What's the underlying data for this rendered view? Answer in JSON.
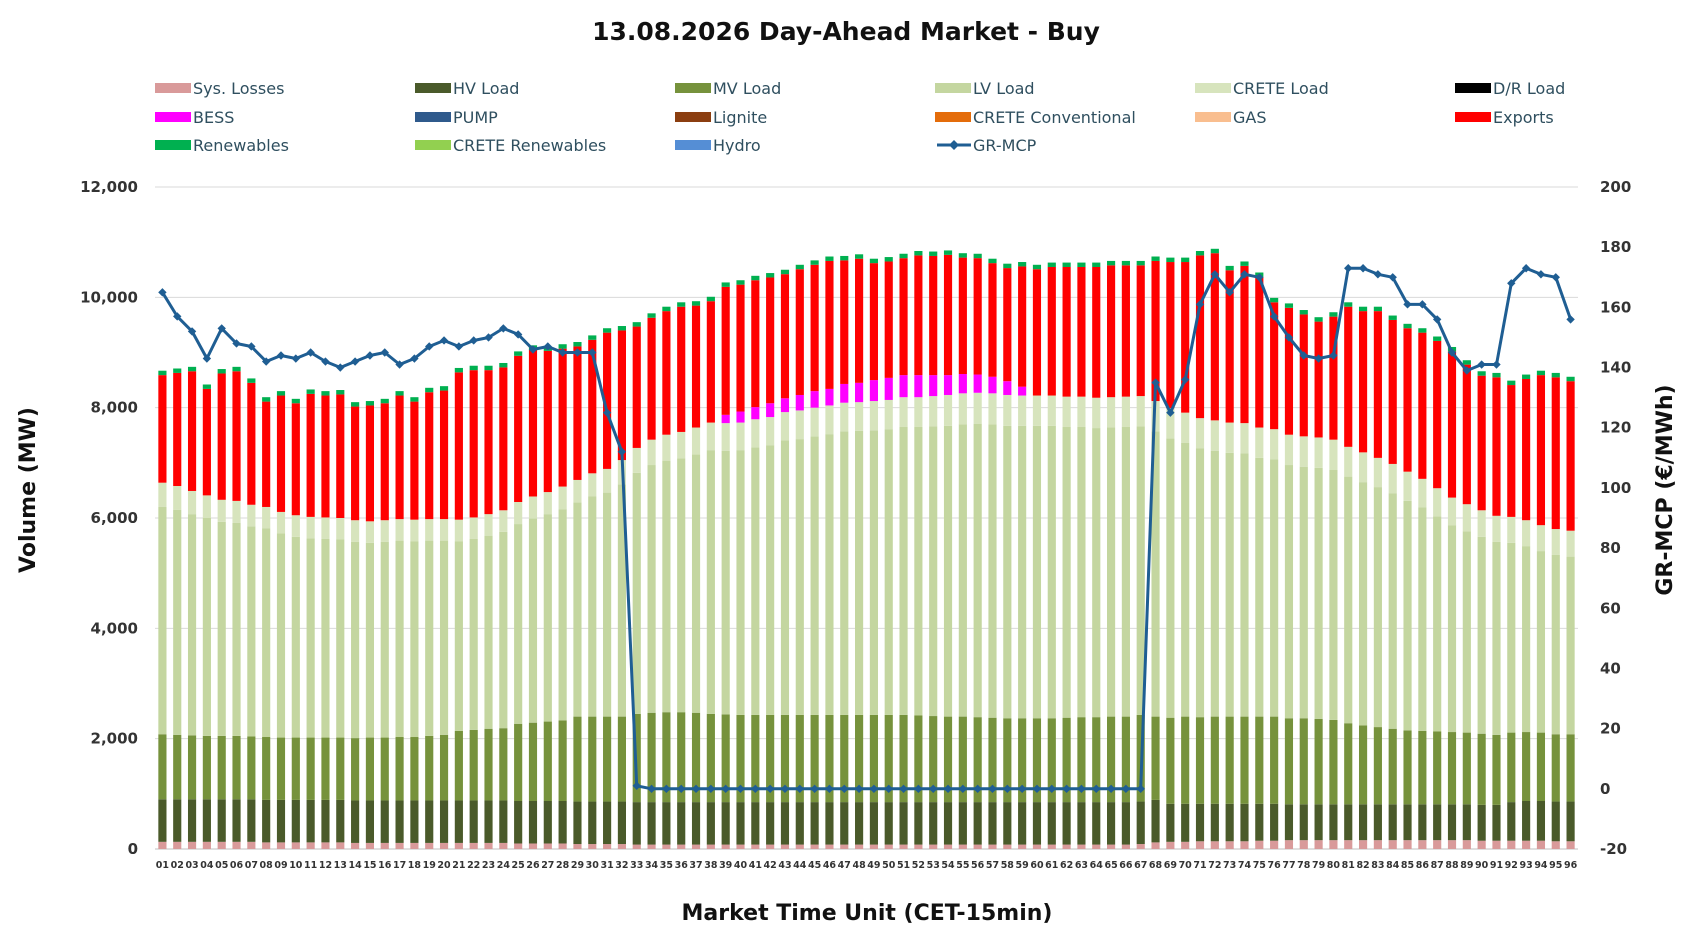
{
  "chart_data": {
    "type": "bar",
    "stacked": true,
    "title": "13.08.2026  Day-Ahead Market - Buy",
    "xlabel": "Market Time Unit (CET-15min)",
    "ylabel": "Volume (MW)",
    "y2label": "GR-MCP (€/MWh)",
    "ylim": [
      0,
      12000
    ],
    "y2lim": [
      -20,
      200
    ],
    "yticks": [
      "0",
      "2,000",
      "4,000",
      "6,000",
      "8,000",
      "10,000",
      "12,000"
    ],
    "y2ticks": [
      "-20",
      "0",
      "20",
      "40",
      "60",
      "80",
      "100",
      "120",
      "140",
      "160",
      "180",
      "200"
    ],
    "grid": true,
    "legend_position": "top",
    "categories": [
      "01",
      "02",
      "03",
      "04",
      "05",
      "06",
      "07",
      "08",
      "09",
      "10",
      "11",
      "12",
      "13",
      "14",
      "15",
      "16",
      "17",
      "18",
      "19",
      "20",
      "21",
      "22",
      "23",
      "24",
      "25",
      "26",
      "27",
      "28",
      "29",
      "30",
      "31",
      "32",
      "33",
      "34",
      "35",
      "36",
      "37",
      "38",
      "39",
      "40",
      "41",
      "42",
      "43",
      "44",
      "45",
      "46",
      "47",
      "48",
      "49",
      "50",
      "51",
      "52",
      "53",
      "54",
      "55",
      "56",
      "57",
      "58",
      "59",
      "60",
      "61",
      "62",
      "63",
      "64",
      "65",
      "66",
      "67",
      "68",
      "69",
      "70",
      "71",
      "72",
      "73",
      "74",
      "75",
      "76",
      "77",
      "78",
      "79",
      "80",
      "81",
      "82",
      "83",
      "84",
      "85",
      "86",
      "87",
      "88",
      "89",
      "90",
      "91",
      "92",
      "93",
      "94",
      "95",
      "96"
    ],
    "legend": [
      {
        "name": "Sys. Losses",
        "color": "#d99a9a",
        "marker": "box"
      },
      {
        "name": "HV Load",
        "color": "#4a5a2a",
        "marker": "box"
      },
      {
        "name": "MV Load",
        "color": "#76923c",
        "marker": "box"
      },
      {
        "name": "LV Load",
        "color": "#c4d6a0",
        "marker": "box"
      },
      {
        "name": "CRETE Load",
        "color": "#d7e4bd",
        "marker": "box"
      },
      {
        "name": "D/R Load",
        "color": "#000000",
        "marker": "box"
      },
      {
        "name": "BESS",
        "color": "#ff00ff",
        "marker": "box"
      },
      {
        "name": "PUMP",
        "color": "#2f5a8c",
        "marker": "box"
      },
      {
        "name": "Lignite",
        "color": "#8b3e10",
        "marker": "box"
      },
      {
        "name": "CRETE Conventional",
        "color": "#e46c0a",
        "marker": "box"
      },
      {
        "name": "GAS",
        "color": "#f9be8f",
        "marker": "box"
      },
      {
        "name": "Exports",
        "color": "#ff0000",
        "marker": "box"
      },
      {
        "name": "Renewables",
        "color": "#00b050",
        "marker": "box"
      },
      {
        "name": "CRETE Renewables",
        "color": "#92d050",
        "marker": "box"
      },
      {
        "name": "Hydro",
        "color": "#558ed5",
        "marker": "box"
      },
      {
        "name": "GR-MCP",
        "color": "#1f5e93",
        "marker": "line"
      }
    ],
    "series": [
      {
        "name": "Sys. Losses",
        "color": "#d99a9a",
        "values": [
          130,
          130,
          130,
          130,
          130,
          130,
          130,
          120,
          120,
          120,
          120,
          120,
          120,
          110,
          110,
          110,
          110,
          110,
          110,
          110,
          110,
          110,
          110,
          110,
          100,
          100,
          100,
          100,
          90,
          90,
          90,
          90,
          80,
          80,
          80,
          80,
          80,
          80,
          80,
          80,
          80,
          80,
          80,
          80,
          80,
          80,
          80,
          80,
          80,
          80,
          80,
          80,
          80,
          80,
          80,
          80,
          80,
          80,
          80,
          80,
          80,
          80,
          80,
          80,
          80,
          80,
          90,
          120,
          130,
          130,
          140,
          140,
          140,
          140,
          150,
          150,
          160,
          160,
          160,
          160,
          160,
          160,
          160,
          160,
          160,
          160,
          160,
          160,
          160,
          150,
          150,
          150,
          150,
          150,
          140,
          140
        ]
      },
      {
        "name": "HV Load",
        "color": "#4a5a2a",
        "values": [
          770,
          770,
          770,
          770,
          770,
          770,
          770,
          770,
          770,
          770,
          770,
          770,
          770,
          770,
          770,
          770,
          770,
          770,
          770,
          770,
          770,
          770,
          770,
          770,
          770,
          770,
          770,
          770,
          770,
          770,
          770,
          770,
          770,
          770,
          770,
          770,
          770,
          770,
          770,
          770,
          770,
          770,
          770,
          770,
          770,
          770,
          770,
          770,
          770,
          770,
          770,
          770,
          770,
          770,
          770,
          770,
          770,
          770,
          770,
          770,
          770,
          770,
          770,
          770,
          770,
          770,
          770,
          770,
          690,
          690,
          680,
          680,
          680,
          680,
          670,
          670,
          650,
          650,
          650,
          650,
          650,
          650,
          650,
          650,
          650,
          650,
          650,
          650,
          650,
          650,
          650,
          700,
          720,
          720,
          720,
          720
        ]
      },
      {
        "name": "MV Load",
        "color": "#76923c",
        "values": [
          1180,
          1170,
          1160,
          1150,
          1150,
          1150,
          1140,
          1140,
          1130,
          1130,
          1130,
          1130,
          1130,
          1130,
          1140,
          1140,
          1150,
          1150,
          1170,
          1190,
          1260,
          1280,
          1300,
          1310,
          1400,
          1420,
          1440,
          1460,
          1540,
          1540,
          1540,
          1540,
          1600,
          1620,
          1630,
          1630,
          1620,
          1600,
          1590,
          1580,
          1580,
          1580,
          1580,
          1580,
          1580,
          1580,
          1580,
          1580,
          1580,
          1580,
          1580,
          1570,
          1560,
          1550,
          1550,
          1540,
          1530,
          1520,
          1520,
          1520,
          1520,
          1530,
          1540,
          1540,
          1550,
          1550,
          1570,
          1510,
          1560,
          1580,
          1570,
          1580,
          1580,
          1580,
          1580,
          1580,
          1560,
          1560,
          1550,
          1530,
          1470,
          1430,
          1400,
          1370,
          1340,
          1330,
          1320,
          1310,
          1300,
          1290,
          1270,
          1260,
          1250,
          1240,
          1220,
          1220
        ]
      },
      {
        "name": "LV Load",
        "color": "#c4d6a0",
        "values": [
          4120,
          4080,
          4010,
          3950,
          3880,
          3860,
          3810,
          3780,
          3700,
          3640,
          3610,
          3600,
          3590,
          3560,
          3530,
          3550,
          3560,
          3550,
          3540,
          3520,
          3440,
          3460,
          3500,
          3560,
          3620,
          3700,
          3760,
          3830,
          3880,
          3990,
          4060,
          4210,
          4370,
          4490,
          4560,
          4600,
          4680,
          4780,
          4780,
          4800,
          4850,
          4890,
          4980,
          5000,
          5050,
          5090,
          5140,
          5150,
          5160,
          5180,
          5220,
          5230,
          5250,
          5270,
          5300,
          5320,
          5320,
          5300,
          5300,
          5300,
          5300,
          5270,
          5260,
          5240,
          5240,
          5250,
          5230,
          5170,
          5060,
          4960,
          4870,
          4820,
          4780,
          4770,
          4690,
          4660,
          4590,
          4560,
          4550,
          4530,
          4470,
          4410,
          4350,
          4270,
          4160,
          4050,
          3900,
          3750,
          3650,
          3570,
          3500,
          3440,
          3370,
          3290,
          3250,
          3220
        ]
      },
      {
        "name": "CRETE Load",
        "color": "#d7e4bd",
        "values": [
          440,
          430,
          420,
          410,
          400,
          400,
          390,
          390,
          390,
          390,
          390,
          390,
          390,
          390,
          390,
          390,
          390,
          390,
          390,
          390,
          390,
          390,
          390,
          390,
          400,
          400,
          400,
          410,
          410,
          420,
          430,
          440,
          450,
          460,
          470,
          480,
          490,
          500,
          500,
          500,
          510,
          510,
          510,
          520,
          520,
          520,
          520,
          520,
          530,
          530,
          540,
          540,
          550,
          560,
          560,
          560,
          560,
          560,
          550,
          550,
          550,
          550,
          550,
          550,
          550,
          550,
          550,
          550,
          550,
          550,
          550,
          550,
          550,
          550,
          550,
          550,
          550,
          550,
          550,
          550,
          540,
          540,
          530,
          530,
          530,
          520,
          510,
          500,
          490,
          480,
          470,
          470,
          470,
          470,
          470,
          470
        ]
      },
      {
        "name": "BESS",
        "color": "#ff00ff",
        "values": [
          0,
          0,
          0,
          0,
          0,
          0,
          0,
          0,
          0,
          0,
          0,
          0,
          0,
          0,
          0,
          0,
          0,
          0,
          0,
          0,
          0,
          0,
          0,
          0,
          0,
          0,
          0,
          0,
          0,
          0,
          0,
          0,
          0,
          0,
          0,
          0,
          0,
          0,
          150,
          200,
          220,
          250,
          250,
          280,
          300,
          300,
          340,
          350,
          380,
          400,
          400,
          400,
          380,
          360,
          350,
          330,
          300,
          250,
          160,
          0,
          0,
          0,
          0,
          0,
          0,
          0,
          0,
          0,
          0,
          0,
          0,
          0,
          0,
          0,
          0,
          0,
          0,
          0,
          0,
          0,
          0,
          0,
          0,
          0,
          0,
          0,
          0,
          0,
          0,
          0,
          0,
          0,
          0,
          0,
          0,
          0
        ]
      },
      {
        "name": "Exports",
        "color": "#ff0000",
        "values": [
          1950,
          2050,
          2170,
          1930,
          2290,
          2350,
          2210,
          1910,
          2110,
          2030,
          2230,
          2210,
          2240,
          2060,
          2100,
          2120,
          2240,
          2140,
          2300,
          2330,
          2670,
          2670,
          2610,
          2590,
          2650,
          2660,
          2560,
          2500,
          2420,
          2420,
          2470,
          2350,
          2200,
          2210,
          2240,
          2270,
          2210,
          2200,
          2320,
          2300,
          2300,
          2280,
          2250,
          2280,
          2290,
          2320,
          2240,
          2250,
          2120,
          2110,
          2120,
          2170,
          2160,
          2180,
          2110,
          2110,
          2060,
          2050,
          2180,
          2290,
          2330,
          2350,
          2350,
          2370,
          2390,
          2380,
          2370,
          2540,
          2650,
          2730,
          2950,
          3030,
          2760,
          2850,
          2730,
          2300,
          2300,
          2210,
          2100,
          2230,
          2540,
          2560,
          2660,
          2610,
          2600,
          2650,
          2670,
          2650,
          2530,
          2440,
          2510,
          2390,
          2560,
          2720,
          2750,
          2710
        ]
      },
      {
        "name": "Renewables",
        "color": "#00b050",
        "values": [
          80,
          80,
          80,
          80,
          80,
          80,
          80,
          80,
          80,
          80,
          80,
          80,
          80,
          80,
          80,
          80,
          80,
          80,
          80,
          80,
          80,
          80,
          80,
          80,
          80,
          80,
          80,
          80,
          80,
          80,
          80,
          80,
          80,
          80,
          80,
          80,
          80,
          80,
          80,
          80,
          80,
          80,
          80,
          80,
          80,
          80,
          80,
          80,
          80,
          80,
          80,
          80,
          80,
          80,
          80,
          80,
          80,
          80,
          80,
          80,
          80,
          80,
          80,
          80,
          80,
          80,
          80,
          80,
          80,
          80,
          80,
          80,
          80,
          80,
          80,
          80,
          80,
          80,
          80,
          80,
          80,
          80,
          80,
          80,
          80,
          80,
          80,
          80,
          80,
          80,
          80,
          80,
          80,
          80,
          80,
          80
        ]
      }
    ],
    "line_series": {
      "name": "GR-MCP",
      "color": "#1f5e93",
      "axis": "right",
      "values": [
        165,
        157,
        152,
        143,
        153,
        148,
        147,
        142,
        144,
        143,
        145,
        142,
        140,
        142,
        144,
        145,
        141,
        143,
        147,
        149,
        147,
        149,
        150,
        153,
        151,
        146,
        147,
        145,
        145,
        145,
        125,
        112,
        1,
        0,
        0,
        0,
        0,
        0,
        0,
        0,
        0,
        0,
        0,
        0,
        0,
        0,
        0,
        0,
        0,
        0,
        0,
        0,
        0,
        0,
        0,
        0,
        0,
        0,
        0,
        0,
        0,
        0,
        0,
        0,
        0,
        0,
        0,
        135,
        125,
        136,
        161,
        171,
        165,
        171,
        170,
        157,
        150,
        144,
        143,
        144,
        173,
        173,
        171,
        170,
        161,
        161,
        156,
        145,
        139,
        141,
        141,
        168,
        173,
        171,
        170,
        156
      ]
    }
  }
}
